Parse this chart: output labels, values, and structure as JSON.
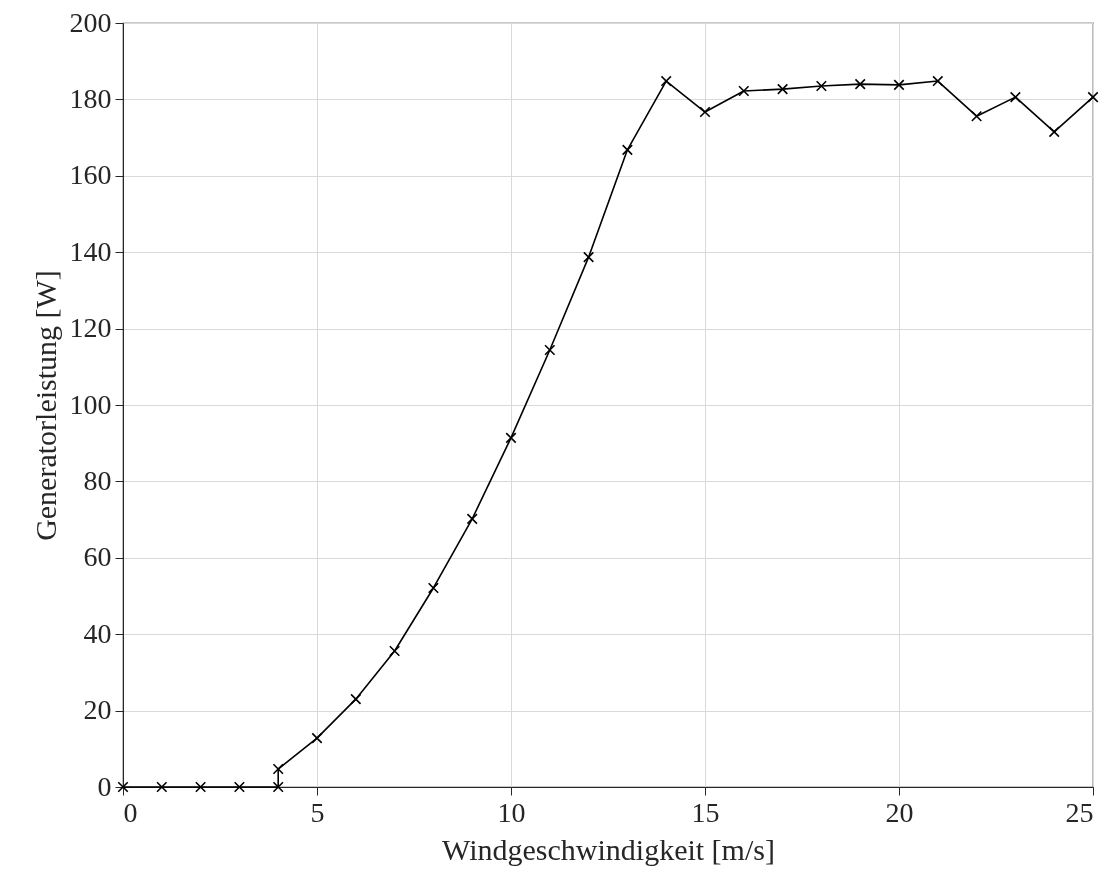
{
  "chart_data": {
    "type": "line",
    "xlabel": "Windgeschwindigkeit [m/s]",
    "ylabel": "Generatorleistung [W]",
    "x": [
      0,
      1,
      2,
      3,
      4,
      4,
      5,
      6,
      7,
      8,
      9,
      10,
      11,
      12,
      13,
      14,
      15,
      16,
      17,
      18,
      19,
      20,
      21,
      22,
      23,
      24,
      25
    ],
    "series": [
      {
        "color": "#000000",
        "values": [
          0,
          0,
          0,
          0,
          0,
          4.7,
          12.8,
          23,
          35.6,
          52.1,
          70.2,
          91.4,
          114.4,
          138.7,
          166.8,
          184.8,
          176.7,
          182.2,
          182.7,
          183.5,
          184,
          183.8,
          184.8,
          175.6,
          180.6,
          171.5,
          180.6
        ]
      }
    ],
    "xlim": [
      0,
      25
    ],
    "xticks": [
      0,
      5,
      10,
      15,
      20,
      25
    ],
    "ylim": [
      0,
      200
    ],
    "yticks": [
      0,
      20,
      40,
      60,
      80,
      100,
      120,
      140,
      160,
      180,
      200
    ],
    "grid": true,
    "marker": "cross",
    "line_style": "solid"
  }
}
